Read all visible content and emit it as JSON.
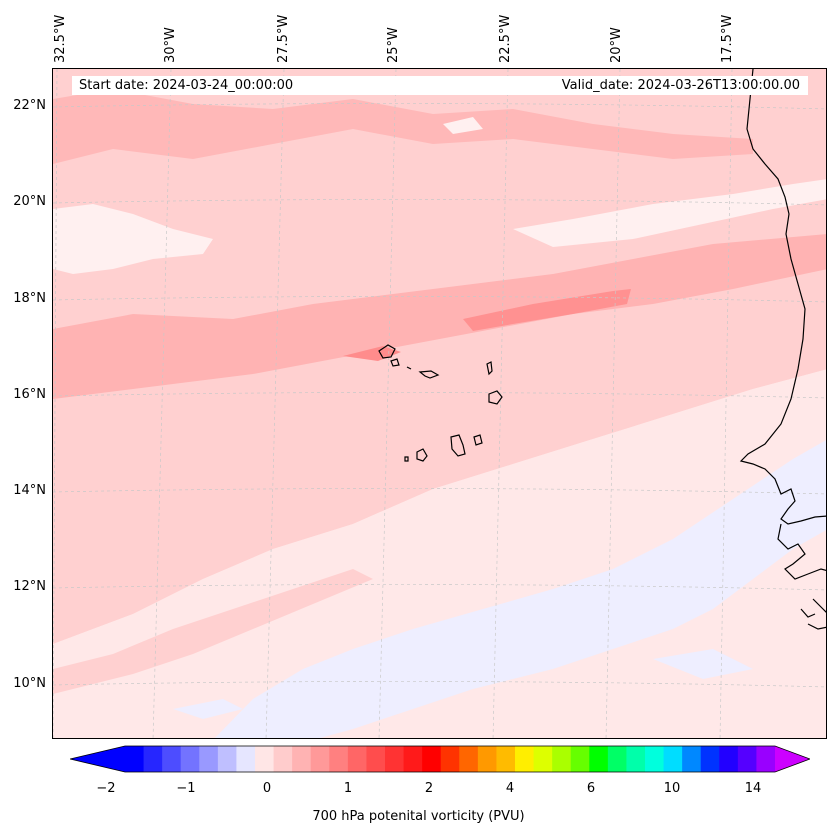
{
  "map": {
    "start_date_label": "Start date: 2024-03-24_00:00:00",
    "valid_date_label": "Valid_date: 2024-03-26T13:00:00.00",
    "longitude_labels": [
      "32.5°W",
      "30°W",
      "27.5°W",
      "25°W",
      "22.5°W",
      "20°W",
      "17.5°W"
    ],
    "latitude_labels": [
      "22°N",
      "20°N",
      "18°N",
      "16°N",
      "14°N",
      "12°N",
      "10°N"
    ],
    "background_color": "#ffe6e6",
    "coastline_color": "#000000",
    "gridline_color": "#c8c8c8"
  },
  "colorbar": {
    "title": "700 hPa potenital vorticity (PVU)",
    "tick_labels": [
      "−2",
      "−1",
      "0",
      "1",
      "2",
      "4",
      "6",
      "10",
      "14"
    ],
    "colors": [
      "#0000ff",
      "#2626ff",
      "#4d4dff",
      "#7373ff",
      "#9999ff",
      "#bfbfff",
      "#e6e6ff",
      "#ffe6e6",
      "#ffcccc",
      "#ffb3b3",
      "#ff9999",
      "#ff8080",
      "#ff6666",
      "#ff4d4d",
      "#ff3333",
      "#ff1a1a",
      "#ff0000",
      "#ff3300",
      "#ff6600",
      "#ff9900",
      "#ffbb00",
      "#ffee00",
      "#ddff00",
      "#aaff00",
      "#66ff00",
      "#00ff00",
      "#00ff66",
      "#00ffaa",
      "#00ffdd",
      "#00ddff",
      "#0088ff",
      "#0033ff",
      "#2200ff",
      "#5500ff",
      "#9900ff"
    ],
    "extend_low_color": "#0000ff",
    "extend_high_color": "#cc00ff"
  }
}
